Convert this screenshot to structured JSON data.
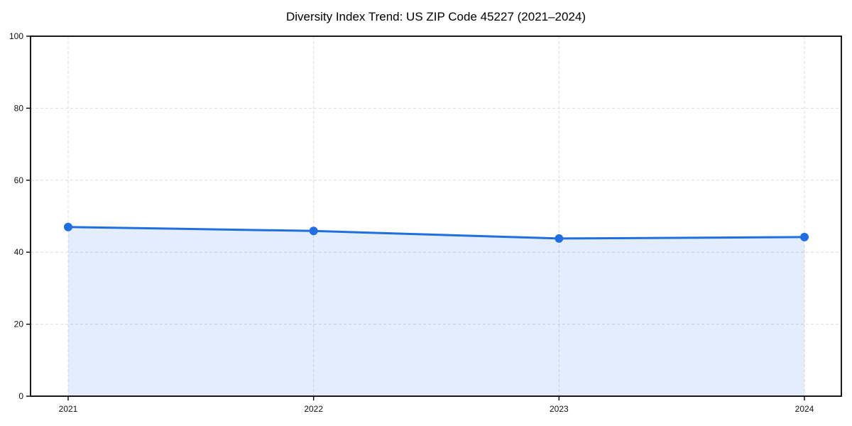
{
  "page": {
    "background": "#ffffff"
  },
  "chart_data": {
    "type": "line",
    "title": "Diversity Index Trend: US ZIP Code 45227 (2021–2024)",
    "categories": [
      "2021",
      "2022",
      "2023",
      "2024"
    ],
    "series": [
      {
        "name": "Diversity Index",
        "values": [
          47.0,
          45.9,
          43.8,
          44.2
        ]
      }
    ],
    "xlabel": "",
    "ylabel": "",
    "ylim": [
      0,
      100
    ],
    "yticks": [
      0,
      20,
      40,
      60,
      80,
      100
    ],
    "grid": true,
    "grid_style": "dashed",
    "legend_position": "none",
    "marker": "circle",
    "area_fill": true,
    "colors": {
      "line": "#1f6fe0",
      "marker": "#1f6fe0",
      "area_fill": "#1f6fe0",
      "area_fill_opacity": 0.12,
      "grid": "#dcdcdc",
      "axis_frame": "#000000",
      "tick_label": "#111111",
      "title": "#000000",
      "background": "#ffffff"
    }
  }
}
